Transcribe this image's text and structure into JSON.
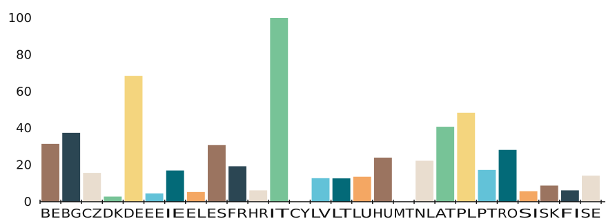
{
  "chart_data": {
    "type": "bar",
    "title": "",
    "xlabel": "",
    "ylabel": "",
    "ylim": [
      0,
      100
    ],
    "yticks": [
      0,
      20,
      40,
      60,
      80,
      100
    ],
    "grid": false,
    "legend": "none",
    "categories": [
      "BE",
      "BG",
      "CZ",
      "DK",
      "DE",
      "EE",
      "IE",
      "EL",
      "ES",
      "FR",
      "HR",
      "IT",
      "CY",
      "LV",
      "LT",
      "LU",
      "HU",
      "MT",
      "NL",
      "AT",
      "PL",
      "PT",
      "RO",
      "SI",
      "SK",
      "FI",
      "SE"
    ],
    "values": [
      31.5,
      37.5,
      15.7,
      2.8,
      68.5,
      4.5,
      17.0,
      5.3,
      30.8,
      19.3,
      6.2,
      100,
      0.2,
      12.8,
      12.7,
      13.6,
      24.0,
      0,
      22.3,
      40.8,
      48.4,
      17.3,
      28.2,
      5.7,
      8.8,
      6.2,
      14.2
    ],
    "colors": [
      "#9b7460",
      "#2b4653",
      "#e9ddcf",
      "#77c397",
      "#f4d57e",
      "#62c2d8",
      "#036a78",
      "#f4a763",
      "#9b7460",
      "#2b4653",
      "#e9ddcf",
      "#77c397",
      "#f4d57e",
      "#62c2d8",
      "#036a78",
      "#f4a763",
      "#9b7460",
      "#2b4653",
      "#e9ddcf",
      "#77c397",
      "#f4d57e",
      "#62c2d8",
      "#036a78",
      "#f4a763",
      "#9b7460",
      "#2b4653",
      "#e9ddcf"
    ]
  }
}
